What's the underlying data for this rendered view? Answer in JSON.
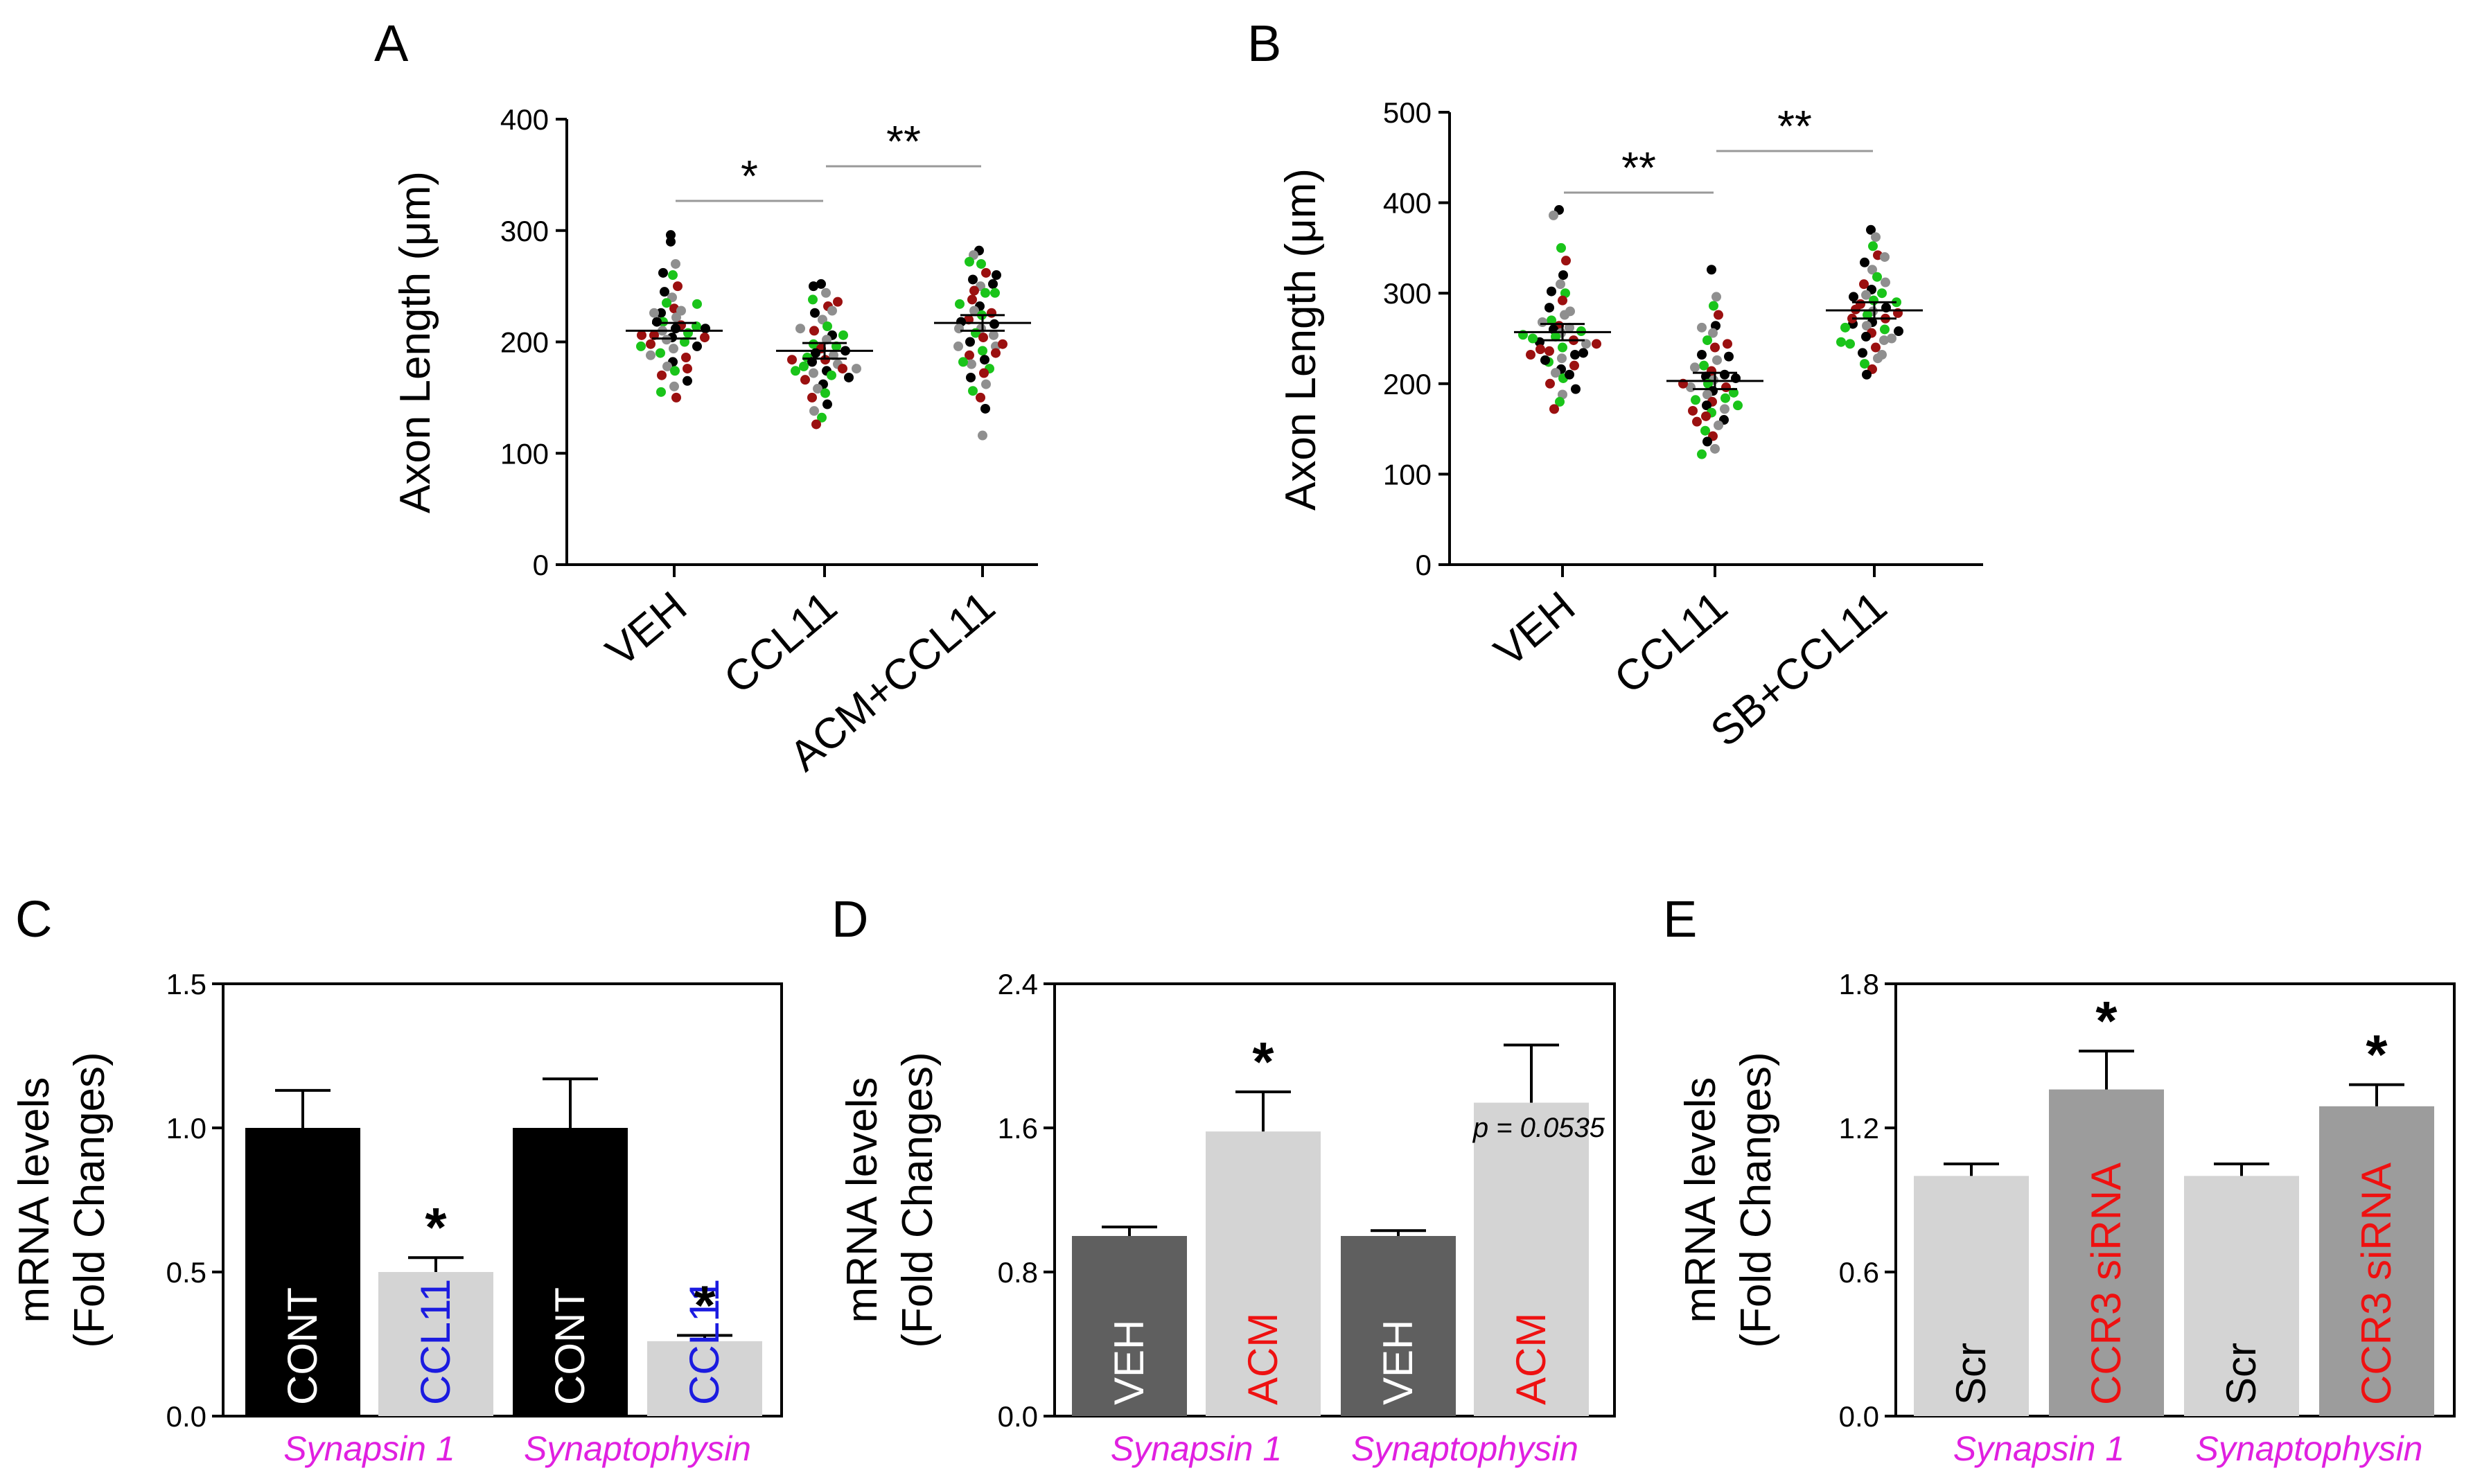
{
  "figure": {
    "panel_letters": [
      "A",
      "B",
      "C",
      "D",
      "E"
    ]
  },
  "colors": {
    "black": "#000000",
    "gray": "#8f8f8f",
    "green": "#1ac41a",
    "darkred": "#9b1010",
    "bar_black": "#000000",
    "bar_light": "#d4d4d4",
    "bar_dark": "#5f5f5f",
    "bar_mid": "#9c9c9c",
    "magenta": "#e020e0",
    "blue": "#1b1be0",
    "red": "#ee1111",
    "white": "#ffffff"
  },
  "chart_data": [
    {
      "panel": "A",
      "type": "scatter",
      "ylabel": "Axon Length (μm)",
      "ylim": [
        0,
        400
      ],
      "yticks": [
        "0",
        "100",
        "200",
        "300",
        "400"
      ],
      "categories": [
        "VEH",
        "CCL11",
        "ACM+CCL11"
      ],
      "means": [
        210,
        192,
        217
      ],
      "sems": [
        7,
        7,
        7
      ],
      "points": [
        [
          290,
          270,
          260,
          250,
          245,
          240,
          235,
          230,
          226,
          222,
          218,
          215,
          212,
          210,
          208,
          206,
          204,
          202,
          200,
          198,
          196,
          194,
          190,
          186,
          182,
          178,
          174,
          170,
          165,
          160,
          155,
          150,
          262,
          228,
          214,
          206,
          218,
          226,
          196,
          176,
          212,
          188,
          234,
          204,
          296
        ],
        [
          252,
          244,
          238,
          232,
          226,
          220,
          214,
          210,
          206,
          202,
          198,
          194,
          190,
          188,
          186,
          184,
          182,
          180,
          178,
          176,
          174,
          172,
          170,
          166,
          162,
          158,
          154,
          150,
          144,
          138,
          132,
          126,
          250,
          212,
          196,
          184,
          168,
          176,
          206,
          236,
          192,
          228,
          174
        ],
        [
          282,
          278,
          270,
          262,
          256,
          250,
          244,
          238,
          232,
          228,
          224,
          220,
          216,
          212,
          208,
          204,
          200,
          196,
          192,
          188,
          184,
          180,
          176,
          172,
          168,
          162,
          156,
          150,
          140,
          116,
          272,
          246,
          218,
          196,
          182,
          226,
          260,
          206,
          234,
          190,
          252,
          212,
          244,
          198
        ]
      ]
    },
    {
      "panel": "B",
      "type": "scatter",
      "ylabel": "Axon Length (μm)",
      "ylim": [
        0,
        500
      ],
      "yticks": [
        "0",
        "100",
        "200",
        "300",
        "400",
        "500"
      ],
      "categories": [
        "VEH",
        "CCL11",
        "SB+CCL11"
      ],
      "means": [
        257,
        203,
        281
      ],
      "sems": [
        9,
        9,
        9
      ],
      "points": [
        [
          392,
          386,
          350,
          336,
          320,
          310,
          300,
          292,
          284,
          276,
          270,
          264,
          260,
          256,
          252,
          248,
          246,
          244,
          240,
          236,
          232,
          228,
          224,
          220,
          216,
          212,
          206,
          200,
          194,
          188,
          180,
          172,
          302,
          262,
          250,
          238,
          226,
          268,
          258,
          244,
          234,
          280,
          254,
          232,
          210
        ],
        [
          326,
          296,
          286,
          276,
          264,
          256,
          248,
          240,
          232,
          226,
          220,
          214,
          208,
          204,
          200,
          196,
          192,
          188,
          184,
          180,
          176,
          172,
          168,
          164,
          160,
          154,
          148,
          142,
          136,
          128,
          122,
          244,
          210,
          196,
          182,
          170,
          230,
          218,
          190,
          158,
          206,
          262,
          176,
          200
        ],
        [
          370,
          362,
          352,
          342,
          334,
          326,
          318,
          310,
          304,
          298,
          292,
          288,
          284,
          280,
          276,
          272,
          268,
          264,
          260,
          256,
          252,
          248,
          244,
          240,
          234,
          228,
          222,
          216,
          210,
          340,
          300,
          282,
          266,
          250,
          290,
          272,
          258,
          312,
          246,
          278,
          296,
          232,
          262
        ]
      ]
    },
    {
      "panel": "C",
      "type": "bar",
      "ylabel_line1": "mRNA levels",
      "ylabel_line2": "(Fold Changes)",
      "ylim": [
        0,
        1.5
      ],
      "yticks": [
        "0.0",
        "0.5",
        "1.0",
        "1.5"
      ],
      "groups": [
        "Synapsin 1",
        "Synaptophysin"
      ],
      "bars": [
        {
          "label": "CONT",
          "value": 1.0,
          "error": 0.13,
          "fill": "bar_black",
          "label_color": "white",
          "star": ""
        },
        {
          "label": "CCL11",
          "value": 0.5,
          "error": 0.05,
          "fill": "bar_light",
          "label_color": "blue",
          "star": "*"
        },
        {
          "label": "CONT",
          "value": 1.0,
          "error": 0.17,
          "fill": "bar_black",
          "label_color": "white",
          "star": ""
        },
        {
          "label": "CCL11",
          "value": 0.26,
          "error": 0.02,
          "fill": "bar_light",
          "label_color": "blue",
          "star": "*"
        }
      ]
    },
    {
      "panel": "D",
      "type": "bar",
      "ylabel_line1": "mRNA levels",
      "ylabel_line2": "(Fold Changes)",
      "ylim": [
        0,
        2.4
      ],
      "yticks": [
        "0.0",
        "0.8",
        "1.6",
        "2.4"
      ],
      "groups": [
        "Synapsin 1",
        "Synaptophysin"
      ],
      "annotation": "p = 0.0535",
      "bars": [
        {
          "label": "VEH",
          "value": 1.0,
          "error": 0.05,
          "fill": "bar_dark",
          "label_color": "white",
          "star": ""
        },
        {
          "label": "ACM",
          "value": 1.58,
          "error": 0.22,
          "fill": "bar_light",
          "label_color": "red",
          "star": "*"
        },
        {
          "label": "VEH",
          "value": 1.0,
          "error": 0.03,
          "fill": "bar_dark",
          "label_color": "white",
          "star": ""
        },
        {
          "label": "ACM",
          "value": 1.74,
          "error": 0.32,
          "fill": "bar_light",
          "label_color": "red",
          "star": ""
        }
      ]
    },
    {
      "panel": "E",
      "type": "bar",
      "ylabel_line1": "mRNA levels",
      "ylabel_line2": "(Fold Changes)",
      "ylim": [
        0,
        1.8
      ],
      "yticks": [
        "0.0",
        "0.6",
        "1.2",
        "1.8"
      ],
      "groups": [
        "Synapsin 1",
        "Synaptophysin"
      ],
      "bars": [
        {
          "label": "Scr",
          "value": 1.0,
          "error": 0.05,
          "fill": "bar_light",
          "label_color": "black",
          "star": ""
        },
        {
          "label": "CCR3 siRNA",
          "value": 1.36,
          "error": 0.16,
          "fill": "bar_mid",
          "label_color": "red",
          "star": "*"
        },
        {
          "label": "Scr",
          "value": 1.0,
          "error": 0.05,
          "fill": "bar_light",
          "label_color": "black",
          "star": ""
        },
        {
          "label": "CCR3 siRNA",
          "value": 1.29,
          "error": 0.09,
          "fill": "bar_mid",
          "label_color": "red",
          "star": "*"
        }
      ]
    }
  ],
  "significance": {
    "A": [
      {
        "from": 0,
        "to": 1,
        "label": "*"
      },
      {
        "from": 1,
        "to": 2,
        "label": "**"
      }
    ],
    "B": [
      {
        "from": 0,
        "to": 1,
        "label": "**"
      },
      {
        "from": 1,
        "to": 2,
        "label": "**"
      }
    ]
  }
}
